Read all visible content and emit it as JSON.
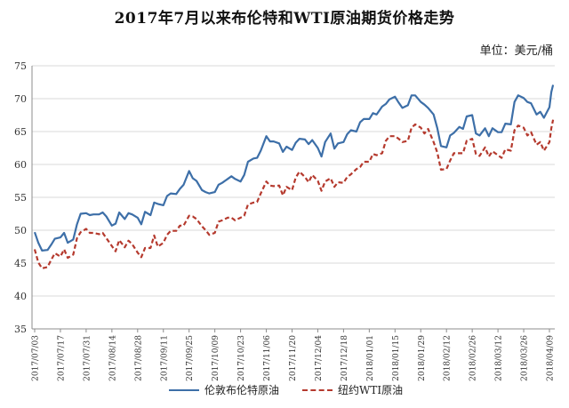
{
  "title": "2017年7月以来布伦特和WTI原油期货价格走势",
  "unit": "单位：美元/桶",
  "colors": {
    "brent": "#3d6fa8",
    "wti": "#b53a2e",
    "grid": "#d9d9d9",
    "axis": "#8c8c8c"
  },
  "chart_data": {
    "type": "line",
    "title": "2017年7月以来布伦特和WTI原油期货价格走势",
    "ylim": [
      35,
      75
    ],
    "y_ticks": [
      35,
      40,
      45,
      50,
      55,
      60,
      65,
      70,
      75
    ],
    "x_ticks": [
      "2017/07/03",
      "2017/07/17",
      "2017/07/31",
      "2017/08/14",
      "2017/08/28",
      "2017/09/11",
      "2017/09/25",
      "2017/10/09",
      "2017/10/23",
      "2017/11/06",
      "2017/11/20",
      "2017/12/04",
      "2017/12/18",
      "2018/01/01",
      "2018/01/15",
      "2018/01/29",
      "2018/02/12",
      "2018/02/26",
      "2018/03/12",
      "2018/03/26",
      "2018/04/09"
    ],
    "x_range": [
      "2017/07/03",
      "2018/04/09"
    ],
    "grid": "horizontal",
    "legend_position": "bottom",
    "series": [
      {
        "name": "伦敦布伦特原油",
        "style": "solid",
        "points": [
          [
            "2017/07/03",
            49.7
          ],
          [
            "2017/07/05",
            48.1
          ],
          [
            "2017/07/07",
            46.9
          ],
          [
            "2017/07/10",
            47.0
          ],
          [
            "2017/07/12",
            47.8
          ],
          [
            "2017/07/14",
            48.7
          ],
          [
            "2017/07/17",
            48.9
          ],
          [
            "2017/07/19",
            49.6
          ],
          [
            "2017/07/21",
            48.1
          ],
          [
            "2017/07/24",
            48.6
          ],
          [
            "2017/07/26",
            50.9
          ],
          [
            "2017/07/28",
            52.5
          ],
          [
            "2017/07/31",
            52.6
          ],
          [
            "2017/08/02",
            52.3
          ],
          [
            "2017/08/04",
            52.4
          ],
          [
            "2017/08/07",
            52.4
          ],
          [
            "2017/08/09",
            52.7
          ],
          [
            "2017/08/11",
            52.1
          ],
          [
            "2017/08/14",
            50.7
          ],
          [
            "2017/08/16",
            51.0
          ],
          [
            "2017/08/18",
            52.7
          ],
          [
            "2017/08/21",
            51.7
          ],
          [
            "2017/08/23",
            52.6
          ],
          [
            "2017/08/25",
            52.4
          ],
          [
            "2017/08/28",
            51.9
          ],
          [
            "2017/08/30",
            50.9
          ],
          [
            "2017/09/01",
            52.8
          ],
          [
            "2017/09/04",
            52.3
          ],
          [
            "2017/09/06",
            54.2
          ],
          [
            "2017/09/08",
            54.0
          ],
          [
            "2017/09/11",
            53.8
          ],
          [
            "2017/09/13",
            55.2
          ],
          [
            "2017/09/15",
            55.6
          ],
          [
            "2017/09/18",
            55.5
          ],
          [
            "2017/09/20",
            56.3
          ],
          [
            "2017/09/22",
            56.9
          ],
          [
            "2017/09/25",
            59.0
          ],
          [
            "2017/09/27",
            57.9
          ],
          [
            "2017/09/29",
            57.5
          ],
          [
            "2017/10/02",
            56.1
          ],
          [
            "2017/10/04",
            55.8
          ],
          [
            "2017/10/06",
            55.6
          ],
          [
            "2017/10/09",
            55.8
          ],
          [
            "2017/10/11",
            56.9
          ],
          [
            "2017/10/13",
            57.2
          ],
          [
            "2017/10/16",
            57.8
          ],
          [
            "2017/10/18",
            58.2
          ],
          [
            "2017/10/20",
            57.8
          ],
          [
            "2017/10/23",
            57.4
          ],
          [
            "2017/10/25",
            58.4
          ],
          [
            "2017/10/27",
            60.4
          ],
          [
            "2017/10/30",
            60.9
          ],
          [
            "2017/11/01",
            61.0
          ],
          [
            "2017/11/03",
            62.1
          ],
          [
            "2017/11/06",
            64.3
          ],
          [
            "2017/11/08",
            63.5
          ],
          [
            "2017/11/10",
            63.5
          ],
          [
            "2017/11/13",
            63.2
          ],
          [
            "2017/11/15",
            61.9
          ],
          [
            "2017/11/17",
            62.7
          ],
          [
            "2017/11/20",
            62.2
          ],
          [
            "2017/11/22",
            63.3
          ],
          [
            "2017/11/24",
            63.9
          ],
          [
            "2017/11/27",
            63.8
          ],
          [
            "2017/11/29",
            63.1
          ],
          [
            "2017/12/01",
            63.7
          ],
          [
            "2017/12/04",
            62.5
          ],
          [
            "2017/12/06",
            61.2
          ],
          [
            "2017/12/08",
            63.4
          ],
          [
            "2017/12/11",
            64.7
          ],
          [
            "2017/12/13",
            62.4
          ],
          [
            "2017/12/15",
            63.2
          ],
          [
            "2017/12/18",
            63.4
          ],
          [
            "2017/12/20",
            64.6
          ],
          [
            "2017/12/22",
            65.2
          ],
          [
            "2017/12/25",
            65.0
          ],
          [
            "2017/12/27",
            66.4
          ],
          [
            "2017/12/29",
            66.9
          ],
          [
            "2018/01/01",
            66.9
          ],
          [
            "2018/01/03",
            67.8
          ],
          [
            "2018/01/05",
            67.6
          ],
          [
            "2018/01/08",
            68.8
          ],
          [
            "2018/01/10",
            69.2
          ],
          [
            "2018/01/12",
            69.9
          ],
          [
            "2018/01/15",
            70.3
          ],
          [
            "2018/01/17",
            69.4
          ],
          [
            "2018/01/19",
            68.6
          ],
          [
            "2018/01/22",
            69.0
          ],
          [
            "2018/01/24",
            70.5
          ],
          [
            "2018/01/26",
            70.5
          ],
          [
            "2018/01/29",
            69.5
          ],
          [
            "2018/01/31",
            69.1
          ],
          [
            "2018/02/02",
            68.6
          ],
          [
            "2018/02/05",
            67.6
          ],
          [
            "2018/02/07",
            65.5
          ],
          [
            "2018/02/09",
            62.8
          ],
          [
            "2018/02/12",
            62.6
          ],
          [
            "2018/02/14",
            64.4
          ],
          [
            "2018/02/16",
            64.8
          ],
          [
            "2018/02/19",
            65.7
          ],
          [
            "2018/02/21",
            65.4
          ],
          [
            "2018/02/23",
            67.3
          ],
          [
            "2018/02/26",
            67.5
          ],
          [
            "2018/02/28",
            64.7
          ],
          [
            "2018/03/02",
            64.4
          ],
          [
            "2018/03/05",
            65.5
          ],
          [
            "2018/03/07",
            64.3
          ],
          [
            "2018/03/09",
            65.5
          ],
          [
            "2018/03/12",
            64.9
          ],
          [
            "2018/03/14",
            64.9
          ],
          [
            "2018/03/16",
            66.2
          ],
          [
            "2018/03/19",
            66.1
          ],
          [
            "2018/03/21",
            69.5
          ],
          [
            "2018/03/23",
            70.5
          ],
          [
            "2018/03/26",
            70.1
          ],
          [
            "2018/03/28",
            69.5
          ],
          [
            "2018/03/30",
            69.3
          ],
          [
            "2018/04/02",
            67.6
          ],
          [
            "2018/04/04",
            68.0
          ],
          [
            "2018/04/06",
            67.1
          ],
          [
            "2018/04/09",
            68.7
          ],
          [
            "2018/04/10",
            71.0
          ],
          [
            "2018/04/11",
            72.1
          ]
        ]
      },
      {
        "name": "纽约WTI原油",
        "style": "dashed",
        "points": [
          [
            "2017/07/03",
            47.1
          ],
          [
            "2017/07/05",
            45.1
          ],
          [
            "2017/07/07",
            44.2
          ],
          [
            "2017/07/10",
            44.4
          ],
          [
            "2017/07/12",
            45.5
          ],
          [
            "2017/07/14",
            46.5
          ],
          [
            "2017/07/17",
            46.0
          ],
          [
            "2017/07/19",
            47.1
          ],
          [
            "2017/07/21",
            45.8
          ],
          [
            "2017/07/24",
            46.3
          ],
          [
            "2017/07/26",
            48.8
          ],
          [
            "2017/07/28",
            49.7
          ],
          [
            "2017/07/31",
            50.2
          ],
          [
            "2017/08/02",
            49.6
          ],
          [
            "2017/08/04",
            49.6
          ],
          [
            "2017/08/07",
            49.4
          ],
          [
            "2017/08/09",
            49.6
          ],
          [
            "2017/08/11",
            48.8
          ],
          [
            "2017/08/14",
            47.6
          ],
          [
            "2017/08/16",
            46.8
          ],
          [
            "2017/08/18",
            48.5
          ],
          [
            "2017/08/21",
            47.4
          ],
          [
            "2017/08/23",
            48.4
          ],
          [
            "2017/08/25",
            47.9
          ],
          [
            "2017/08/28",
            46.6
          ],
          [
            "2017/08/30",
            45.9
          ],
          [
            "2017/09/01",
            47.3
          ],
          [
            "2017/09/04",
            47.3
          ],
          [
            "2017/09/06",
            49.2
          ],
          [
            "2017/09/08",
            47.5
          ],
          [
            "2017/09/11",
            48.1
          ],
          [
            "2017/09/13",
            49.3
          ],
          [
            "2017/09/15",
            49.9
          ],
          [
            "2017/09/18",
            49.9
          ],
          [
            "2017/09/20",
            50.7
          ],
          [
            "2017/09/22",
            50.7
          ],
          [
            "2017/09/25",
            52.2
          ],
          [
            "2017/09/27",
            52.1
          ],
          [
            "2017/09/29",
            51.7
          ],
          [
            "2017/10/02",
            50.6
          ],
          [
            "2017/10/04",
            50.0
          ],
          [
            "2017/10/06",
            49.3
          ],
          [
            "2017/10/09",
            49.6
          ],
          [
            "2017/10/11",
            51.3
          ],
          [
            "2017/10/13",
            51.5
          ],
          [
            "2017/10/16",
            51.9
          ],
          [
            "2017/10/18",
            51.9
          ],
          [
            "2017/10/20",
            51.5
          ],
          [
            "2017/10/23",
            51.9
          ],
          [
            "2017/10/25",
            52.2
          ],
          [
            "2017/10/27",
            53.9
          ],
          [
            "2017/10/30",
            54.2
          ],
          [
            "2017/11/01",
            54.3
          ],
          [
            "2017/11/03",
            55.6
          ],
          [
            "2017/11/06",
            57.4
          ],
          [
            "2017/11/08",
            56.8
          ],
          [
            "2017/11/10",
            56.7
          ],
          [
            "2017/11/13",
            56.8
          ],
          [
            "2017/11/15",
            55.3
          ],
          [
            "2017/11/17",
            56.6
          ],
          [
            "2017/11/20",
            56.1
          ],
          [
            "2017/11/22",
            58.0
          ],
          [
            "2017/11/24",
            58.9
          ],
          [
            "2017/11/27",
            58.1
          ],
          [
            "2017/11/29",
            57.3
          ],
          [
            "2017/12/01",
            58.4
          ],
          [
            "2017/12/04",
            57.5
          ],
          [
            "2017/12/06",
            56.0
          ],
          [
            "2017/12/08",
            57.4
          ],
          [
            "2017/12/11",
            57.9
          ],
          [
            "2017/12/13",
            56.6
          ],
          [
            "2017/12/15",
            57.3
          ],
          [
            "2017/12/18",
            57.2
          ],
          [
            "2017/12/20",
            58.1
          ],
          [
            "2017/12/22",
            58.5
          ],
          [
            "2017/12/25",
            59.3
          ],
          [
            "2017/12/27",
            59.6
          ],
          [
            "2017/12/29",
            60.4
          ],
          [
            "2018/01/01",
            60.4
          ],
          [
            "2018/01/03",
            61.6
          ],
          [
            "2018/01/05",
            61.4
          ],
          [
            "2018/01/08",
            61.7
          ],
          [
            "2018/01/10",
            63.6
          ],
          [
            "2018/01/12",
            64.3
          ],
          [
            "2018/01/15",
            64.3
          ],
          [
            "2018/01/17",
            63.9
          ],
          [
            "2018/01/19",
            63.4
          ],
          [
            "2018/01/22",
            63.6
          ],
          [
            "2018/01/24",
            65.6
          ],
          [
            "2018/01/26",
            66.1
          ],
          [
            "2018/01/29",
            65.6
          ],
          [
            "2018/01/31",
            64.7
          ],
          [
            "2018/02/02",
            65.4
          ],
          [
            "2018/02/05",
            63.4
          ],
          [
            "2018/02/07",
            61.8
          ],
          [
            "2018/02/09",
            59.2
          ],
          [
            "2018/02/12",
            59.3
          ],
          [
            "2018/02/14",
            60.6
          ],
          [
            "2018/02/16",
            61.7
          ],
          [
            "2018/02/19",
            61.7
          ],
          [
            "2018/02/21",
            61.7
          ],
          [
            "2018/02/23",
            63.6
          ],
          [
            "2018/02/26",
            63.9
          ],
          [
            "2018/02/28",
            61.6
          ],
          [
            "2018/03/02",
            61.3
          ],
          [
            "2018/03/05",
            62.6
          ],
          [
            "2018/03/07",
            61.2
          ],
          [
            "2018/03/09",
            62.0
          ],
          [
            "2018/03/12",
            61.4
          ],
          [
            "2018/03/14",
            61.0
          ],
          [
            "2018/03/16",
            62.3
          ],
          [
            "2018/03/19",
            62.1
          ],
          [
            "2018/03/21",
            65.2
          ],
          [
            "2018/03/23",
            65.9
          ],
          [
            "2018/03/26",
            65.6
          ],
          [
            "2018/03/28",
            64.4
          ],
          [
            "2018/03/30",
            64.9
          ],
          [
            "2018/04/02",
            63.0
          ],
          [
            "2018/04/04",
            63.4
          ],
          [
            "2018/04/06",
            62.1
          ],
          [
            "2018/04/09",
            63.4
          ],
          [
            "2018/04/10",
            65.5
          ],
          [
            "2018/04/11",
            66.8
          ]
        ]
      }
    ]
  }
}
